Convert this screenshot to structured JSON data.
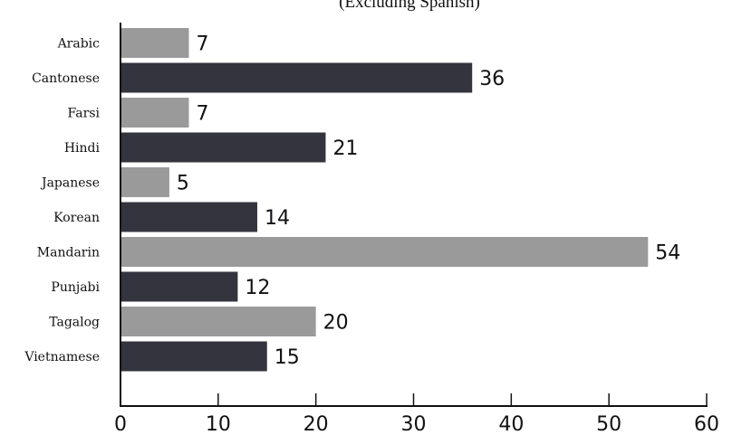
{
  "chart_data": {
    "type": "bar",
    "orientation": "horizontal",
    "title": "",
    "subtitle": "(Excluding Spanish)",
    "xlabel": "",
    "ylabel": "",
    "xlim": [
      0,
      60
    ],
    "xticks": [
      0,
      10,
      20,
      30,
      40,
      50,
      60
    ],
    "grid": false,
    "categories": [
      "Arabic",
      "Cantonese",
      "Farsi",
      "Hindi",
      "Japanese",
      "Korean",
      "Mandarin",
      "Punjabi",
      "Tagalog",
      "Vietnamese"
    ],
    "values": [
      7,
      36,
      7,
      21,
      5,
      14,
      54,
      12,
      20,
      15
    ],
    "colors": [
      "#9a9a9a",
      "#34343f",
      "#9a9a9a",
      "#34343f",
      "#9a9a9a",
      "#34343f",
      "#9a9a9a",
      "#34343f",
      "#9a9a9a",
      "#34343f"
    ]
  }
}
